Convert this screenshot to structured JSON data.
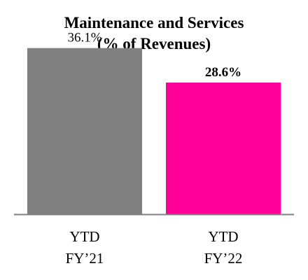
{
  "chart_data": {
    "type": "bar",
    "title": "Maintenance and Services",
    "subtitle": "(% of Revenues)",
    "categories": [
      [
        "YTD",
        "FY’21"
      ],
      [
        "YTD",
        "FY’22"
      ]
    ],
    "values": [
      36.1,
      28.6
    ],
    "data_labels": [
      "36.1%",
      "28.6%"
    ],
    "data_label_bold": [
      false,
      true
    ],
    "colors": [
      "#808080",
      "#ff0099"
    ],
    "ylim": [
      0,
      40
    ],
    "grid": false,
    "legend": "none"
  }
}
